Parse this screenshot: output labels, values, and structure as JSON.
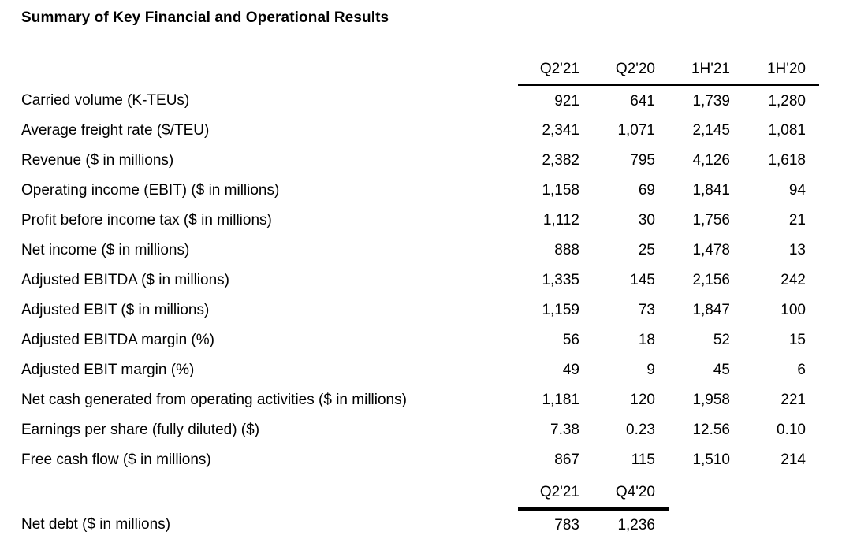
{
  "page": {
    "title": "Summary of Key Financial and Operational Results",
    "text_color": "#000000",
    "background_color": "#ffffff"
  },
  "main_table": {
    "columns": [
      "Q2'21",
      "Q2'20",
      "1H'21",
      "1H'20"
    ],
    "rows": [
      {
        "label": "Carried volume (K-TEUs)",
        "values": [
          "921",
          "641",
          "1,739",
          "1,280"
        ]
      },
      {
        "label": "Average freight rate ($/TEU)",
        "values": [
          "2,341",
          "1,071",
          "2,145",
          "1,081"
        ]
      },
      {
        "label": "Revenue ($ in millions)",
        "values": [
          "2,382",
          "795",
          "4,126",
          "1,618"
        ]
      },
      {
        "label": "Operating income (EBIT) ($ in millions)",
        "values": [
          "1,158",
          "69",
          "1,841",
          "94"
        ]
      },
      {
        "label": "Profit before income tax ($ in millions)",
        "values": [
          "1,112",
          "30",
          "1,756",
          "21"
        ]
      },
      {
        "label": "Net income ($ in millions)",
        "values": [
          "888",
          "25",
          "1,478",
          "13"
        ]
      },
      {
        "label": "Adjusted EBITDA ($ in millions)",
        "values": [
          "1,335",
          "145",
          "2,156",
          "242"
        ]
      },
      {
        "label": "Adjusted EBIT ($ in millions)",
        "values": [
          "1,159",
          "73",
          "1,847",
          "100"
        ]
      },
      {
        "label": "Adjusted EBITDA margin (%)",
        "values": [
          "56",
          "18",
          "52",
          "15"
        ]
      },
      {
        "label": "Adjusted EBIT margin (%)",
        "values": [
          "49",
          "9",
          "45",
          "6"
        ]
      },
      {
        "label": "Net cash generated from operating activities ($ in millions)",
        "values": [
          "1,181",
          "120",
          "1,958",
          "221"
        ]
      },
      {
        "label": "Earnings per share (fully diluted) ($)",
        "values": [
          "7.38",
          "0.23",
          "12.56",
          "0.10"
        ]
      },
      {
        "label": "Free cash flow ($ in millions)",
        "values": [
          "867",
          "115",
          "1,510",
          "214"
        ]
      }
    ]
  },
  "net_debt_table": {
    "columns": [
      "Q2'21",
      "Q4'20"
    ],
    "rows": [
      {
        "label": "Net debt ($ in millions)",
        "values": [
          "783",
          "1,236"
        ]
      }
    ]
  }
}
